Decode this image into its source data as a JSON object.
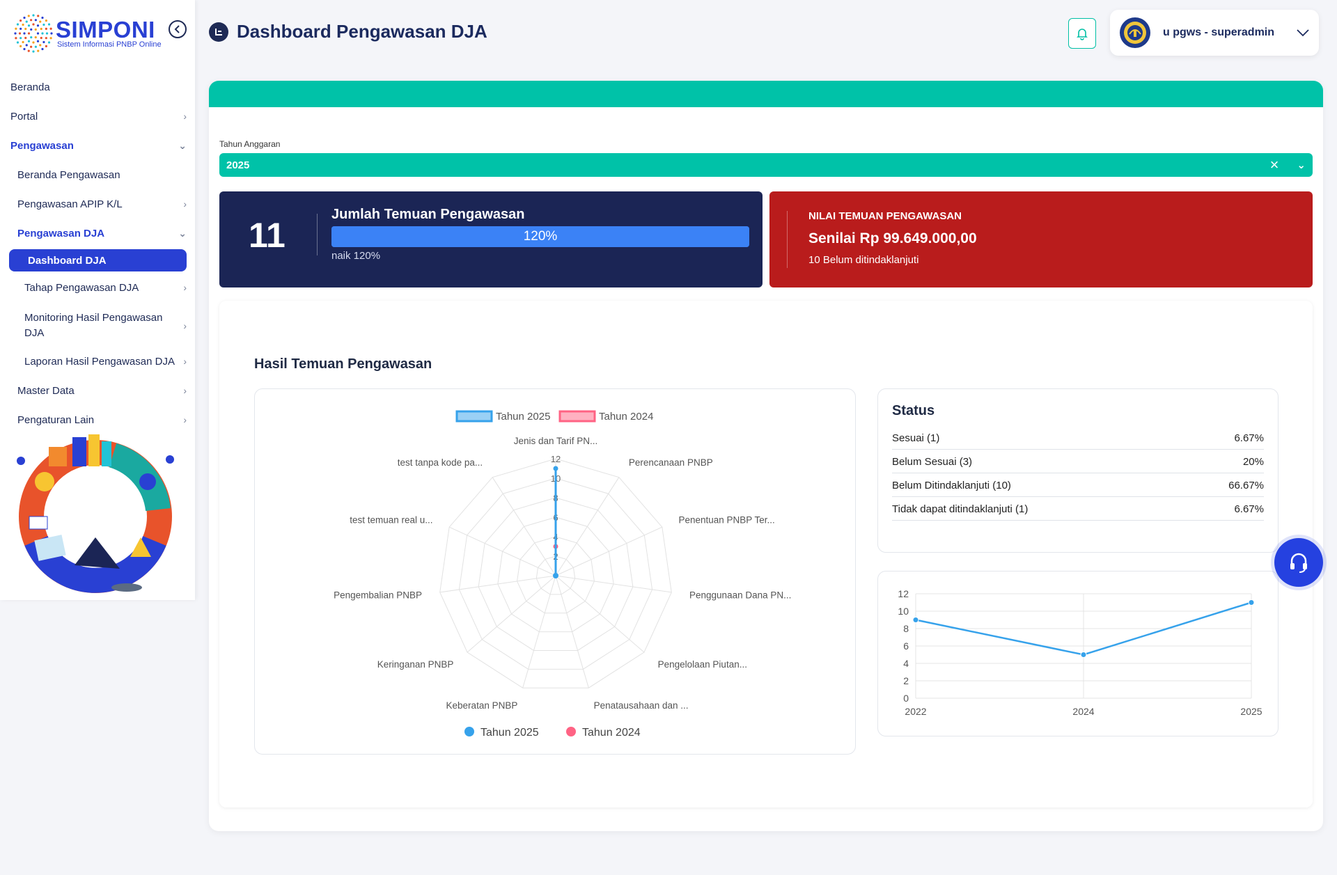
{
  "app": {
    "name": "SIMPONI",
    "subtitle": "Sistem Informasi PNBP Online"
  },
  "sidebar": {
    "items": [
      {
        "label": "Beranda"
      },
      {
        "label": "Portal"
      },
      {
        "label": "Pengawasan"
      },
      {
        "label": "Beranda Pengawasan"
      },
      {
        "label": "Pengawasan APIP K/L"
      },
      {
        "label": "Pengawasan DJA"
      },
      {
        "label": "Dashboard DJA"
      },
      {
        "label": "Tahap Pengawasan DJA"
      },
      {
        "label": "Monitoring Hasil Pengawasan DJA"
      },
      {
        "label": "Laporan Hasil Pengawasan DJA"
      },
      {
        "label": "Master Data"
      },
      {
        "label": "Pengaturan Lain"
      }
    ]
  },
  "header": {
    "title": "Dashboard Pengawasan DJA",
    "user": "u pgws - superadmin"
  },
  "filter": {
    "label": "Tahun Anggaran",
    "value": "2025"
  },
  "stats": {
    "left": {
      "value": "11",
      "label": "Jumlah Temuan Pengawasan",
      "progress_text": "120%",
      "progress": 1.0,
      "sub": "naik 120%"
    },
    "right": {
      "label": "NILAI TEMUAN PENGAWASAN",
      "value": "Senilai Rp 99.649.000,00",
      "sub": "10 Belum ditindaklanjuti"
    }
  },
  "section": {
    "title": "Hasil Temuan Pengawasan"
  },
  "status": {
    "title": "Status",
    "rows": [
      {
        "label": "Sesuai (1)",
        "value": "6.67%"
      },
      {
        "label": "Belum Sesuai (3)",
        "value": "20%"
      },
      {
        "label": "Belum Ditindaklanjuti (10)",
        "value": "66.67%"
      },
      {
        "label": "Tidak dapat ditindaklanjuti (1)",
        "value": "6.67%"
      }
    ]
  },
  "colors": {
    "accent": "#00c2a8",
    "primary": "#2940d3",
    "navy": "#1b2555",
    "danger": "#b91c1c",
    "series_2025": "#36a2eb",
    "series_2024": "#ff6384"
  },
  "chart_data": [
    {
      "type": "radar",
      "categories": [
        "Jenis dan Tarif PN...",
        "Perencanaan PNBP",
        "Penentuan PNBP Ter...",
        "Penggunaan Dana PN...",
        "Pengelolaan Piutan...",
        "Penatausahaan dan ...",
        "Keberatan PNBP",
        "Keringanan PNBP",
        "Pengembalian PNBP",
        "test temuan real u...",
        "test tanpa kode pa..."
      ],
      "series": [
        {
          "name": "Tahun 2025",
          "values": [
            11,
            0,
            0,
            0,
            0,
            0,
            0,
            0,
            0,
            0,
            0
          ]
        },
        {
          "name": "Tahun 2024",
          "values": [
            3,
            0,
            0,
            0,
            0,
            0,
            0,
            0,
            0,
            0,
            0
          ]
        }
      ],
      "rlim": [
        0,
        12
      ],
      "ticks": [
        "2",
        "4",
        "6",
        "8",
        "10",
        "12"
      ],
      "legend_top": "top",
      "legend_bottom": "bottom"
    },
    {
      "type": "line",
      "x": [
        "2022",
        "2024",
        "2025"
      ],
      "series": [
        {
          "values": [
            9,
            5,
            11
          ]
        }
      ],
      "ylim": [
        0,
        12
      ],
      "yticks": [
        "0",
        "2",
        "4",
        "6",
        "8",
        "10",
        "12"
      ],
      "grid": true
    }
  ]
}
